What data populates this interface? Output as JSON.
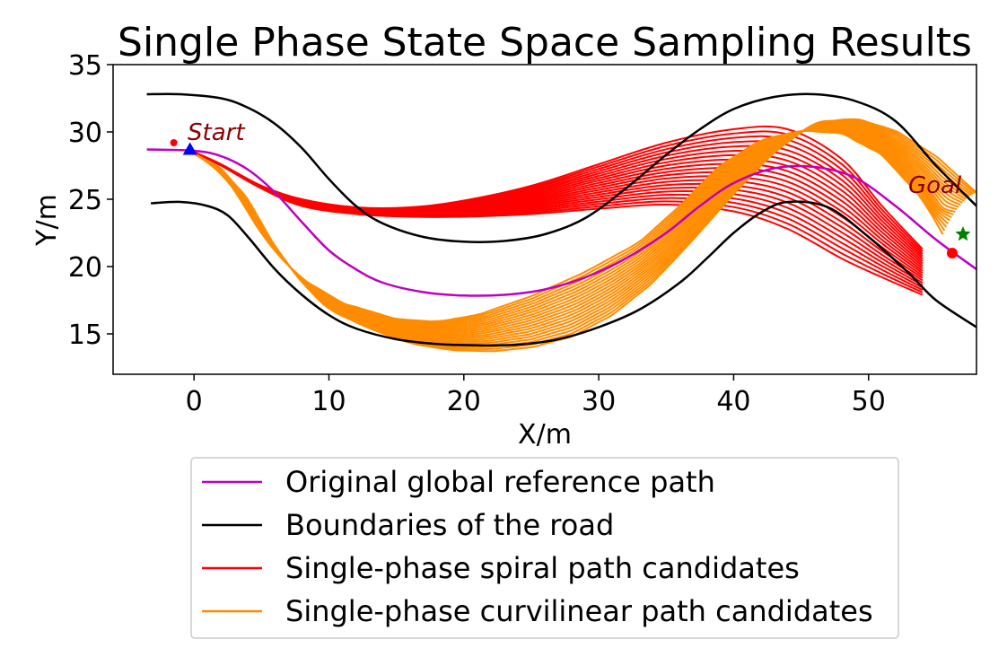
{
  "chart_data": {
    "type": "line",
    "title": "Single Phase State Space Sampling Results",
    "xlabel": "X/m",
    "ylabel": "Y/m",
    "xlim": [
      -6,
      58
    ],
    "ylim": [
      12,
      35
    ],
    "xticks": [
      0,
      10,
      20,
      30,
      40,
      50
    ],
    "yticks": [
      15,
      20,
      25,
      30,
      35
    ],
    "grid": false,
    "legend_position": "below plot",
    "annotations": [
      {
        "text": "Start",
        "x": -0.5,
        "y": 29.8
      },
      {
        "text": "Goal",
        "x": 53,
        "y": 25.4
      }
    ],
    "markers": {
      "start_point": {
        "x": -1.5,
        "y": 29.2,
        "color": "#ff0000"
      },
      "start_triangle": {
        "x": -0.3,
        "y": 28.7,
        "color": "#0000ff"
      },
      "goal_point": {
        "x": 56.2,
        "y": 21.0,
        "color": "#ff0000"
      },
      "goal_star": {
        "x": 57.0,
        "y": 22.4,
        "color": "#008000"
      }
    },
    "series": [
      {
        "name": "Original global reference path",
        "color": "#bf00bf",
        "x": [
          -3.5,
          0,
          2,
          4,
          6,
          8,
          10,
          12,
          14,
          17,
          20,
          23,
          26,
          29,
          32,
          35,
          37.5,
          40,
          43,
          46,
          49,
          52,
          55,
          58
        ],
        "y": [
          28.7,
          28.6,
          28.2,
          27.2,
          25.5,
          23.3,
          21.2,
          19.8,
          18.8,
          18.1,
          17.85,
          17.9,
          18.3,
          19.2,
          20.6,
          22.5,
          24.5,
          26.2,
          27.3,
          27.4,
          26.6,
          24.5,
          22.0,
          19.8
        ]
      },
      {
        "name": "Boundaries of the road",
        "color": "#000000",
        "x": [
          -3.5,
          -1,
          2,
          4,
          6,
          8,
          10,
          12,
          14,
          17,
          20,
          23,
          26,
          29,
          32,
          35,
          37.5,
          40,
          43,
          46,
          49,
          52,
          55,
          58
        ],
        "y": [
          32.8,
          32.8,
          32.5,
          31.8,
          30.6,
          28.8,
          26.5,
          24.5,
          23.2,
          22.2,
          21.85,
          21.9,
          22.4,
          23.6,
          25.8,
          28.3,
          30.2,
          31.7,
          32.6,
          32.8,
          32.3,
          30.8,
          27.5,
          24.5
        ]
      },
      {
        "name": "",
        "color": "#000000",
        "x": [
          -3.2,
          -1,
          1,
          2.5,
          4,
          6,
          8,
          10,
          12,
          15,
          18,
          21,
          24,
          27,
          30,
          33,
          36,
          38,
          40,
          42,
          44,
          47,
          50,
          53,
          55,
          58
        ],
        "y": [
          24.7,
          24.8,
          24.5,
          23.8,
          22.2,
          19.8,
          17.9,
          16.4,
          15.4,
          14.6,
          14.25,
          14.15,
          14.2,
          14.6,
          15.5,
          16.8,
          18.8,
          20.6,
          22.5,
          24.0,
          24.8,
          24.4,
          22.2,
          19.5,
          17.5,
          15.5
        ]
      },
      {
        "name": "Single-phase spiral path candidates",
        "color": "#ff0000",
        "count": 20,
        "x": [
          0,
          2,
          5,
          8,
          12,
          16,
          20,
          25,
          30,
          35,
          40,
          44,
          48,
          51,
          54
        ],
        "y_first": [
          28.5,
          27.6,
          26.0,
          25.0,
          24.4,
          24.4,
          24.9,
          26.0,
          27.6,
          29.2,
          30.2,
          30.2,
          28.0,
          24.5,
          21.3
        ],
        "y_last": [
          28.5,
          27.5,
          25.8,
          24.5,
          23.9,
          23.7,
          23.7,
          23.9,
          24.3,
          24.6,
          24.1,
          22.8,
          20.6,
          19.2,
          17.9
        ]
      },
      {
        "name": "Single-phase curvilinear path candidates",
        "color": "#ff8c00",
        "count": 20,
        "x_first": [
          0,
          1.5,
          3,
          4.5,
          6,
          8,
          11,
          15,
          18,
          21,
          25,
          29,
          33,
          36,
          39,
          42,
          45,
          48,
          51,
          54,
          55.5
        ],
        "y_first": [
          28.4,
          27.4,
          25.7,
          23.2,
          21.1,
          19.1,
          17.3,
          16.1,
          15.9,
          16.4,
          17.8,
          19.6,
          21.8,
          24.5,
          27.5,
          29.4,
          30.1,
          29.9,
          28.3,
          25.0,
          22.4
        ],
        "x_last": [
          0,
          2,
          4,
          6,
          8,
          10,
          13,
          16,
          19,
          22,
          25,
          28,
          31,
          34,
          37,
          40,
          43,
          46,
          49,
          52,
          55,
          58
        ],
        "y_last": [
          28.4,
          27.3,
          25.0,
          21.5,
          18.8,
          16.8,
          15.4,
          14.3,
          13.8,
          13.7,
          14.0,
          14.8,
          16.4,
          18.8,
          22.0,
          25.4,
          28.5,
          30.7,
          31.0,
          30.1,
          28.2,
          25.5
        ]
      }
    ]
  }
}
